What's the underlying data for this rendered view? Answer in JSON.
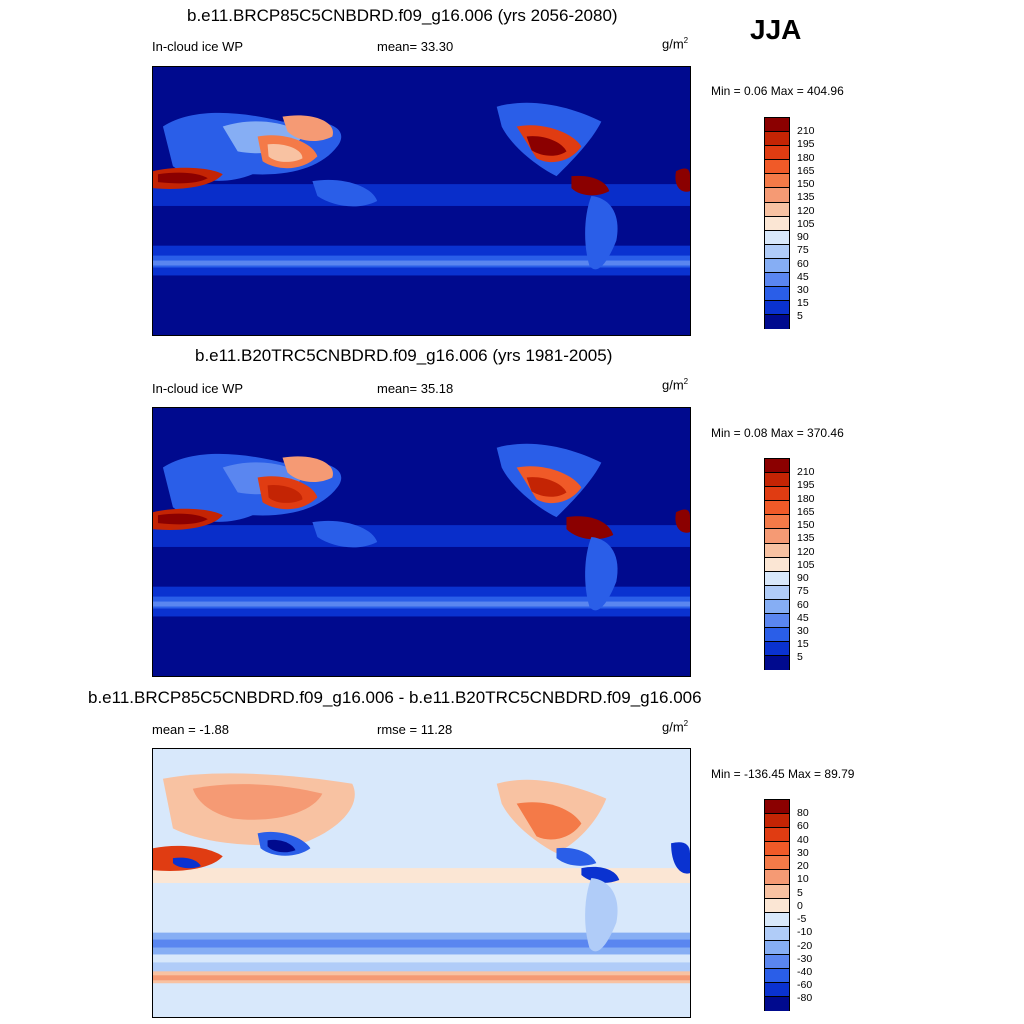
{
  "season": "JJA",
  "units_base": "g/m",
  "units_exp": "2",
  "panels": [
    {
      "title": "b.e11.BRCP85C5CNBDRD.f09_g16.006 (yrs 2056-2080)",
      "left_label": "In-cloud ice WP",
      "center_label": "mean=  33.30",
      "minmax": "Min =   0.06 Max = 404.96",
      "levels": [
        "210",
        "195",
        "180",
        "165",
        "150",
        "135",
        "120",
        "105",
        "90",
        "75",
        "60",
        "45",
        "30",
        "15",
        "5"
      ]
    },
    {
      "title": "b.e11.B20TRC5CNBDRD.f09_g16.006 (yrs 1981-2005)",
      "left_label": "In-cloud ice WP",
      "center_label": "mean=  35.18",
      "minmax": "Min =   0.08 Max = 370.46",
      "levels": [
        "210",
        "195",
        "180",
        "165",
        "150",
        "135",
        "120",
        "105",
        "90",
        "75",
        "60",
        "45",
        "30",
        "15",
        "5"
      ]
    },
    {
      "title": "b.e11.BRCP85C5CNBDRD.f09_g16.006 - b.e11.B20TRC5CNBDRD.f09_g16.006",
      "left_label": "mean =  -1.88",
      "center_label": "rmse =  11.28",
      "minmax": "Min = -136.45 Max =  89.79",
      "levels": [
        "80",
        "60",
        "40",
        "30",
        "20",
        "10",
        "5",
        "0",
        "-5",
        "-10",
        "-20",
        "-30",
        "-40",
        "-60",
        "-80"
      ]
    }
  ],
  "colors": {
    "abs_scale": [
      "#8b0000",
      "#c42404",
      "#e03c12",
      "#f05a28",
      "#f47a48",
      "#f59a74",
      "#f8c2a2",
      "#fbe6d4",
      "#d8e8fb",
      "#b0ccf8",
      "#86aef4",
      "#5a86f0",
      "#2a5ee8",
      "#0a32d0",
      "#000a8e"
    ],
    "diff_scale": [
      "#8b0000",
      "#c42404",
      "#e03c12",
      "#f05a28",
      "#f47a48",
      "#f59a74",
      "#f8c2a2",
      "#fbe6d4",
      "#d8e8fb",
      "#b0ccf8",
      "#86aef4",
      "#5a86f0",
      "#2a5ee8",
      "#0a32d0",
      "#000a8e"
    ]
  }
}
